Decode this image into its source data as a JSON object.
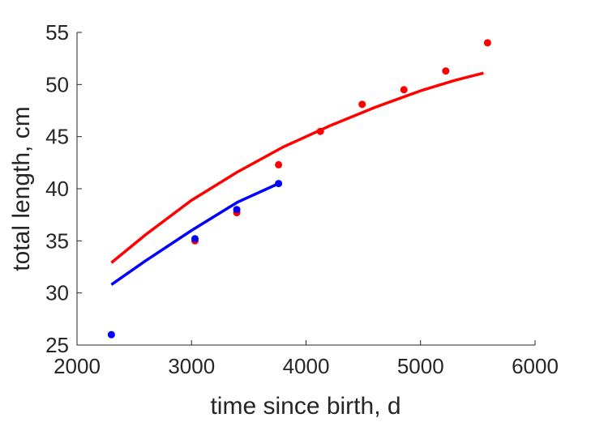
{
  "chart_data": {
    "type": "scatter",
    "title": "",
    "xlabel": "time since birth, d",
    "ylabel": "total length, cm",
    "xlim": [
      2000,
      6000
    ],
    "ylim": [
      25,
      55
    ],
    "xticks": [
      2000,
      3000,
      4000,
      5000,
      6000
    ],
    "yticks": [
      25,
      30,
      35,
      40,
      45,
      50,
      55
    ],
    "grid": false,
    "series": [
      {
        "kind": "points",
        "color": "#ff0000",
        "x": [
          3030,
          3395,
          3760,
          4125,
          4490,
          4855,
          5220,
          5585
        ],
        "y": [
          35.0,
          37.7,
          42.3,
          45.5,
          48.1,
          49.5,
          51.3,
          54.0
        ]
      },
      {
        "kind": "points",
        "color": "#0000ff",
        "x": [
          2300,
          3030,
          3395,
          3760
        ],
        "y": [
          26.0,
          35.2,
          38.0,
          40.5
        ]
      },
      {
        "kind": "curve",
        "color": "#ff0000",
        "x": [
          2300,
          2600,
          3000,
          3400,
          3800,
          4200,
          4600,
          5000,
          5300,
          5550
        ],
        "y": [
          32.9,
          35.6,
          38.9,
          41.6,
          44.0,
          46.0,
          47.8,
          49.4,
          50.4,
          51.1
        ]
      },
      {
        "kind": "curve",
        "color": "#0000ff",
        "x": [
          2300,
          2600,
          3000,
          3400,
          3760
        ],
        "y": [
          30.8,
          33.1,
          36.0,
          38.7,
          40.5
        ]
      }
    ]
  }
}
